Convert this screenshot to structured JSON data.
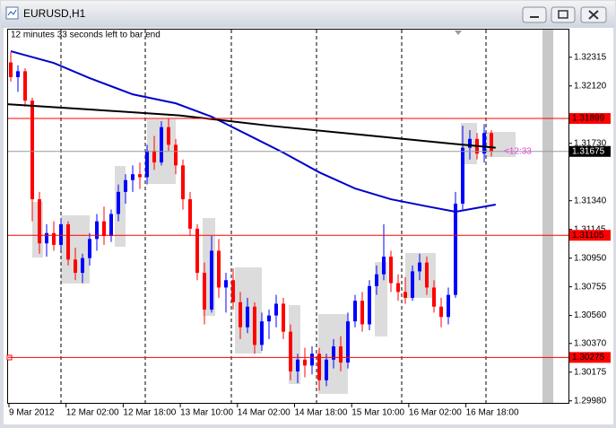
{
  "window": {
    "title": "EURUSD,H1"
  },
  "chart_data": {
    "type": "candlestick",
    "info_text": "12 minutes 33 seconds left to bar end",
    "countdown": "<12:33",
    "ylim": [
      1.2996,
      1.32509
    ],
    "yticks": [
      1.32315,
      {
        "value": 1.3212,
        "label": "1.32120"
      },
      {
        "value": 1.3173,
        "label": "1.31730"
      },
      {
        "value": 1.3134,
        "label": "1.31340"
      },
      1.31145,
      {
        "value": 1.3095,
        "label": "1.30950"
      },
      1.30755,
      {
        "value": 1.3056,
        "label": "1.30560"
      },
      {
        "value": 1.3037,
        "label": "1.30370"
      },
      1.30175,
      {
        "value": 1.2998,
        "label": "1.29980"
      }
    ],
    "time_labels": [
      "9 Mar 2012",
      "12 Mar 02:00",
      "12 Mar 18:00",
      "13 Mar 10:00",
      "14 Mar 02:00",
      "14 Mar 18:00",
      "15 Mar 10:00",
      "16 Mar 02:00",
      "16 Mar 18:00"
    ],
    "bull_color": "#0000ff",
    "bear_color": "#ff0000",
    "levels": [
      {
        "value": 1.31899,
        "color": "#ff0000"
      },
      {
        "value": 1.31675,
        "color": "#000000",
        "current": true
      },
      {
        "value": 1.31105,
        "color": "#ff0000"
      },
      {
        "value": 1.30275,
        "color": "#ff0000"
      }
    ],
    "candles": [
      [
        1.3228,
        1.3235,
        1.3215,
        1.3218
      ],
      [
        1.3218,
        1.3226,
        1.3208,
        1.3222
      ],
      [
        1.3222,
        1.3224,
        1.3198,
        1.3202
      ],
      [
        1.3202,
        1.3204,
        1.312,
        1.3135
      ],
      [
        1.3135,
        1.314,
        1.3098,
        1.3105
      ],
      [
        1.3105,
        1.3118,
        1.3096,
        1.3112
      ],
      [
        1.3112,
        1.312,
        1.31,
        1.3104
      ],
      [
        1.3104,
        1.3122,
        1.31,
        1.3118
      ],
      [
        1.3118,
        1.312,
        1.309,
        1.3094
      ],
      [
        1.3094,
        1.3102,
        1.308,
        1.3085
      ],
      [
        1.3085,
        1.3098,
        1.3078,
        1.3095
      ],
      [
        1.3095,
        1.3112,
        1.309,
        1.3108
      ],
      [
        1.3108,
        1.3125,
        1.31,
        1.312
      ],
      [
        1.312,
        1.313,
        1.3104,
        1.311
      ],
      [
        1.311,
        1.3128,
        1.3106,
        1.3125
      ],
      [
        1.3125,
        1.3145,
        1.312,
        1.314
      ],
      [
        1.314,
        1.3152,
        1.3132,
        1.3148
      ],
      [
        1.3148,
        1.3158,
        1.314,
        1.3152
      ],
      [
        1.3152,
        1.316,
        1.3142,
        1.315
      ],
      [
        1.315,
        1.3172,
        1.3145,
        1.3168
      ],
      [
        1.3168,
        1.3178,
        1.3155,
        1.316
      ],
      [
        1.316,
        1.3188,
        1.3158,
        1.3184
      ],
      [
        1.3184,
        1.319,
        1.3168,
        1.3172
      ],
      [
        1.3172,
        1.3176,
        1.3152,
        1.3158
      ],
      [
        1.3158,
        1.3162,
        1.3128,
        1.3135
      ],
      [
        1.3135,
        1.314,
        1.311,
        1.3115
      ],
      [
        1.3115,
        1.3118,
        1.308,
        1.3085
      ],
      [
        1.3085,
        1.3092,
        1.305,
        1.306
      ],
      [
        1.306,
        1.311,
        1.3058,
        1.31
      ],
      [
        1.31,
        1.3108,
        1.3068,
        1.3075
      ],
      [
        1.3075,
        1.3085,
        1.3058,
        1.308
      ],
      [
        1.308,
        1.3088,
        1.306,
        1.3065
      ],
      [
        1.3065,
        1.3072,
        1.304,
        1.3048
      ],
      [
        1.3048,
        1.3068,
        1.3044,
        1.3062
      ],
      [
        1.3062,
        1.3065,
        1.303,
        1.3036
      ],
      [
        1.3036,
        1.3058,
        1.3032,
        1.3052
      ],
      [
        1.3052,
        1.306,
        1.304,
        1.3056
      ],
      [
        1.3056,
        1.307,
        1.3048,
        1.3064
      ],
      [
        1.3064,
        1.3068,
        1.304,
        1.3045
      ],
      [
        1.3045,
        1.305,
        1.3012,
        1.3018
      ],
      [
        1.3018,
        1.303,
        1.301,
        1.3026
      ],
      [
        1.3026,
        1.3034,
        1.3014,
        1.3022
      ],
      [
        1.3022,
        1.3035,
        1.3016,
        1.303
      ],
      [
        1.303,
        1.3034,
        1.3005,
        1.3012
      ],
      [
        1.3012,
        1.303,
        1.3008,
        1.3026
      ],
      [
        1.3026,
        1.304,
        1.302,
        1.3035
      ],
      [
        1.3035,
        1.3042,
        1.3018,
        1.3024
      ],
      [
        1.3024,
        1.3058,
        1.302,
        1.3052
      ],
      [
        1.3052,
        1.307,
        1.3048,
        1.3066
      ],
      [
        1.3066,
        1.3072,
        1.3045,
        1.305
      ],
      [
        1.305,
        1.308,
        1.3046,
        1.3076
      ],
      [
        1.3076,
        1.309,
        1.307,
        1.3084
      ],
      [
        1.3084,
        1.3118,
        1.308,
        1.3096
      ],
      [
        1.3096,
        1.31,
        1.3072,
        1.3078
      ],
      [
        1.3078,
        1.3084,
        1.3066,
        1.3072
      ],
      [
        1.3072,
        1.3082,
        1.3064,
        1.3068
      ],
      [
        1.3068,
        1.309,
        1.3066,
        1.3086
      ],
      [
        1.3086,
        1.3098,
        1.308,
        1.3092
      ],
      [
        1.3092,
        1.3096,
        1.307,
        1.3075
      ],
      [
        1.3075,
        1.308,
        1.3058,
        1.3062
      ],
      [
        1.3062,
        1.3068,
        1.3048,
        1.3055
      ],
      [
        1.3055,
        1.3075,
        1.305,
        1.307
      ],
      [
        1.307,
        1.314,
        1.3068,
        1.3132
      ],
      [
        1.3132,
        1.3185,
        1.3128,
        1.317
      ],
      [
        1.317,
        1.3182,
        1.3162,
        1.3176
      ],
      [
        1.3176,
        1.318,
        1.3162,
        1.3166
      ],
      [
        1.3166,
        1.3186,
        1.316,
        1.318
      ],
      [
        1.318,
        1.3182,
        1.3164,
        1.31675
      ]
    ],
    "ma_lines": [
      {
        "color": "#0000cc",
        "x": [
          0,
          6,
          11,
          17,
          23,
          28,
          33,
          38,
          43,
          48,
          53,
          58,
          62,
          67.6
        ],
        "values": [
          1.32356,
          1.32276,
          1.32173,
          1.32063,
          1.32002,
          1.31911,
          1.31789,
          1.31667,
          1.31533,
          1.31423,
          1.3135,
          1.31302,
          1.31265,
          1.31314
        ]
      },
      {
        "color": "#000000",
        "x": [
          -0.5,
          11,
          23.5,
          36,
          48.5,
          61,
          67.6
        ],
        "values": [
          1.31996,
          1.3196,
          1.3192,
          1.3185,
          1.3179,
          1.3173,
          1.317
        ]
      }
    ]
  }
}
